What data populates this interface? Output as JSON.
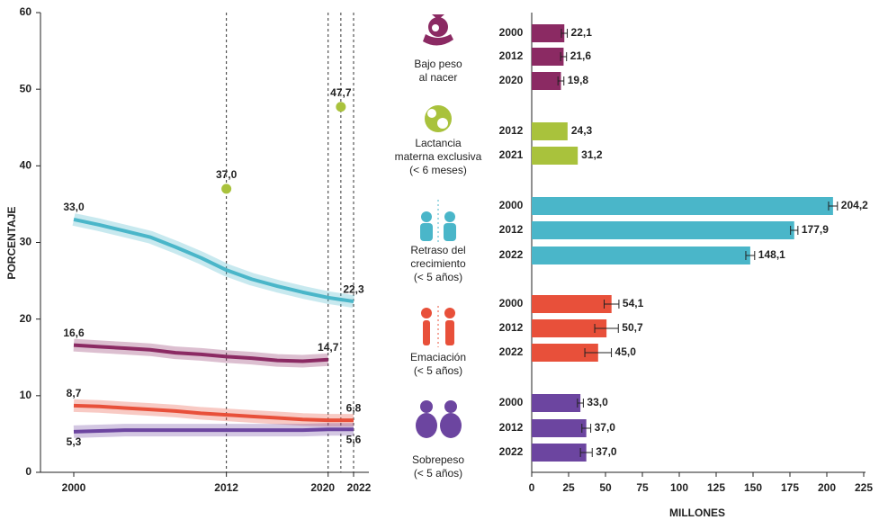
{
  "chart_data": [
    {
      "type": "line",
      "y_label": "PORCENTAJE",
      "x": [
        2000,
        2002,
        2004,
        2006,
        2008,
        2010,
        2012,
        2014,
        2016,
        2018,
        2020,
        2022
      ],
      "xlim": [
        2000,
        2022
      ],
      "xticks": [
        2000,
        2012,
        2020,
        2022
      ],
      "ylim": [
        0,
        60
      ],
      "yticks": [
        0,
        10,
        20,
        30,
        40,
        50,
        60
      ],
      "vlines": [
        2012,
        2020,
        2021,
        2022
      ],
      "series": [
        {
          "name": "Bajo peso\nal nacer",
          "color": "#8b2a63",
          "values": [
            16.6,
            16.4,
            16.2,
            16.0,
            15.6,
            15.4,
            15.1,
            14.9,
            14.6,
            14.5,
            14.7,
            null
          ],
          "value_labels": [
            "16,6",
            null,
            null,
            null,
            null,
            null,
            null,
            null,
            null,
            null,
            "14,7",
            null
          ]
        },
        {
          "name": "Lactancia\nmaterna exclusiva\n(< 6 meses)",
          "color": "#a9c23c",
          "type": "scatter",
          "x": [
            2012,
            2021
          ],
          "values": [
            37.0,
            47.7
          ],
          "value_labels": [
            "37,0",
            "47,7"
          ]
        },
        {
          "name": "Retraso del\ncrecimiento\n(< 5 años)",
          "color": "#4ab6c9",
          "values": [
            33.0,
            32.3,
            31.5,
            30.7,
            29.4,
            28.0,
            26.4,
            25.2,
            24.3,
            23.5,
            22.8,
            22.3
          ],
          "value_labels": [
            "33,0",
            null,
            null,
            null,
            null,
            null,
            null,
            null,
            null,
            null,
            null,
            "22,3"
          ]
        },
        {
          "name": "Emaciación\n(< 5 años)",
          "color": "#e8503a",
          "values": [
            8.7,
            8.6,
            8.4,
            8.2,
            8.0,
            7.7,
            7.5,
            7.3,
            7.1,
            6.9,
            6.8,
            6.8
          ],
          "value_labels": [
            "8,7",
            null,
            null,
            null,
            null,
            null,
            null,
            null,
            null,
            null,
            null,
            "6,8"
          ]
        },
        {
          "name": "Sobrepeso\n(< 5 años)",
          "color": "#6c45a0",
          "values": [
            5.3,
            5.4,
            5.5,
            5.5,
            5.5,
            5.5,
            5.5,
            5.5,
            5.5,
            5.5,
            5.6,
            5.6
          ],
          "value_labels": [
            "5,3",
            null,
            null,
            null,
            null,
            null,
            null,
            null,
            null,
            null,
            null,
            "5,6"
          ]
        }
      ]
    },
    {
      "type": "bar",
      "orientation": "horizontal",
      "x_label": "MILLONES",
      "xlim": [
        0,
        225
      ],
      "xticks": [
        0,
        25,
        50,
        75,
        100,
        125,
        150,
        175,
        200,
        225
      ],
      "groups": [
        {
          "color": "#8b2a63",
          "categories": [
            "2000",
            "2012",
            "2020"
          ],
          "values": [
            22.1,
            21.6,
            19.8
          ],
          "value_labels": [
            "22,1",
            "21,6",
            "19,8"
          ],
          "errors": [
            2,
            2,
            2
          ]
        },
        {
          "color": "#a9c23c",
          "categories": [
            "2012",
            "2021"
          ],
          "values": [
            24.3,
            31.2
          ],
          "value_labels": [
            "24,3",
            "31,2"
          ]
        },
        {
          "color": "#4ab6c9",
          "categories": [
            "2000",
            "2012",
            "2022"
          ],
          "values": [
            204.2,
            177.9,
            148.1
          ],
          "value_labels": [
            "204,2",
            "177,9",
            "148,1"
          ],
          "errors": [
            3,
            2.5,
            3
          ]
        },
        {
          "color": "#e8503a",
          "categories": [
            "2000",
            "2012",
            "2022"
          ],
          "values": [
            54.1,
            50.7,
            45.0
          ],
          "value_labels": [
            "54,1",
            "50,7",
            "45,0"
          ],
          "errors": [
            5,
            8,
            9
          ]
        },
        {
          "color": "#6c45a0",
          "categories": [
            "2000",
            "2012",
            "2022"
          ],
          "values": [
            33.0,
            37.0,
            37.0
          ],
          "value_labels": [
            "33,0",
            "37,0",
            "37,0"
          ],
          "errors": [
            2,
            3,
            4
          ]
        }
      ]
    }
  ]
}
